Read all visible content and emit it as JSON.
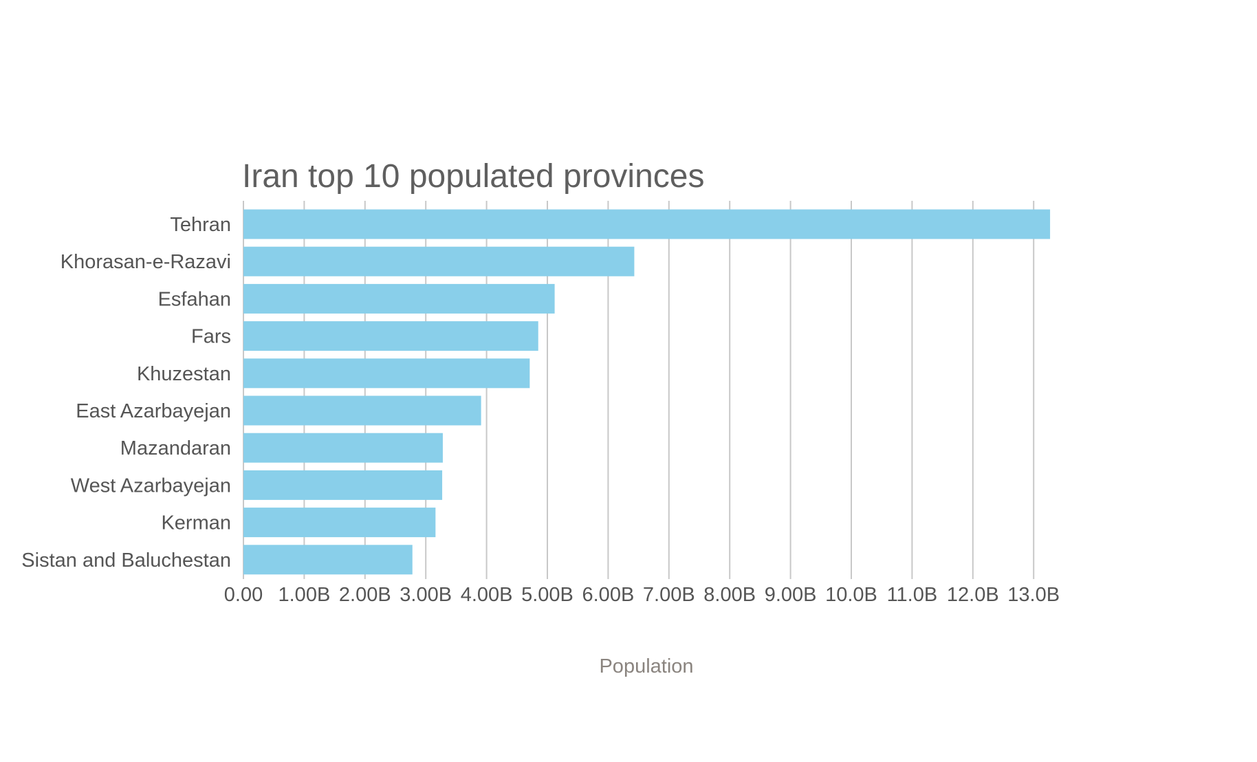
{
  "chart_data": {
    "type": "bar",
    "orientation": "horizontal",
    "title": "Iran top 10 populated provinces",
    "xlabel": "Population",
    "ylabel": "",
    "categories": [
      "Tehran",
      "Khorasan-e-Razavi",
      "Esfahan",
      "Fars",
      "Khuzestan",
      "East Azarbayejan",
      "Mazandaran",
      "West Azarbayejan",
      "Kerman",
      "Sistan and Baluchestan"
    ],
    "values": [
      13270000000,
      6430000000,
      5120000000,
      4850000000,
      4710000000,
      3910000000,
      3280000000,
      3270000000,
      3160000000,
      2780000000
    ],
    "xlim": [
      0,
      13000000000
    ],
    "xticks": [
      0,
      1000000000,
      2000000000,
      3000000000,
      4000000000,
      5000000000,
      6000000000,
      7000000000,
      8000000000,
      9000000000,
      10000000000,
      11000000000,
      12000000000,
      13000000000
    ],
    "xtick_labels": [
      "0.00",
      "1.00B",
      "2.00B",
      "3.00B",
      "4.00B",
      "5.00B",
      "6.00B",
      "7.00B",
      "8.00B",
      "9.00B",
      "10.0B",
      "11.0B",
      "12.0B",
      "13.0B"
    ],
    "grid": true,
    "legend": "none",
    "bar_color": "#89cfea"
  }
}
